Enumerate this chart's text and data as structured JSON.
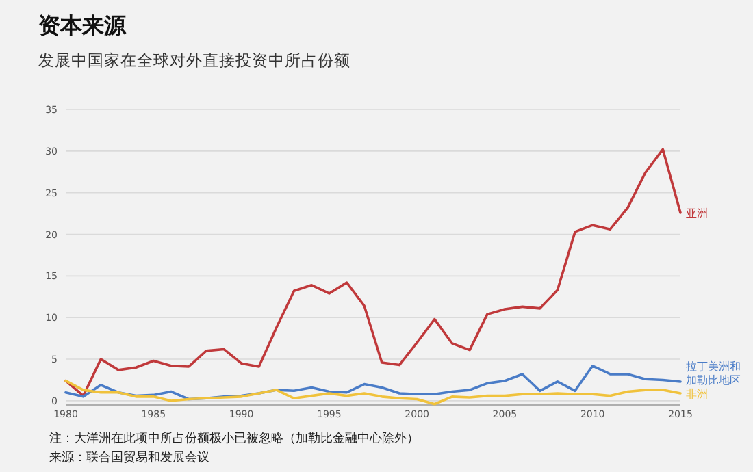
{
  "chart_data": {
    "type": "line",
    "title": "资本来源",
    "subtitle": "发展中国家在全球对外直接投资中所占份额",
    "annotations": [
      "注：大洋洲在此项中所占份额极小已被忽略（加勒比金融中心除外）",
      "来源：联合国贸易和发展会议"
    ],
    "x": [
      1980,
      1981,
      1982,
      1983,
      1984,
      1985,
      1986,
      1987,
      1988,
      1989,
      1990,
      1991,
      1992,
      1993,
      1994,
      1995,
      1996,
      1997,
      1998,
      1999,
      2000,
      2001,
      2002,
      2003,
      2004,
      2005,
      2006,
      2007,
      2008,
      2009,
      2010,
      2011,
      2012,
      2013,
      2014,
      2015
    ],
    "series": [
      {
        "name": "亚洲",
        "color": "#c0393b",
        "values": [
          2.4,
          0.6,
          5.0,
          3.7,
          4.0,
          4.8,
          4.2,
          4.1,
          6.0,
          6.2,
          4.5,
          4.1,
          8.8,
          13.2,
          13.9,
          12.9,
          14.2,
          11.4,
          4.6,
          4.3,
          7.0,
          9.8,
          6.9,
          6.1,
          10.4,
          11.0,
          11.3,
          11.1,
          13.3,
          20.3,
          21.1,
          20.6,
          23.2,
          27.4,
          30.2,
          22.6
        ]
      },
      {
        "name": "拉丁美洲和加勒比地区",
        "color": "#4a7cc7",
        "values": [
          1.0,
          0.5,
          1.9,
          1.0,
          0.6,
          0.7,
          1.1,
          0.2,
          0.3,
          0.5,
          0.6,
          0.9,
          1.3,
          1.2,
          1.6,
          1.1,
          1.0,
          2.0,
          1.6,
          0.9,
          0.8,
          0.8,
          1.1,
          1.3,
          2.1,
          2.4,
          3.2,
          1.2,
          2.3,
          1.2,
          4.2,
          3.2,
          3.2,
          2.6,
          2.5,
          2.3
        ]
      },
      {
        "name": "非洲",
        "color": "#f0c23c",
        "values": [
          2.4,
          1.3,
          1.0,
          1.0,
          0.5,
          0.5,
          0.0,
          0.2,
          0.3,
          0.4,
          0.5,
          0.9,
          1.3,
          0.3,
          0.6,
          0.9,
          0.6,
          0.9,
          0.5,
          0.3,
          0.2,
          -0.4,
          0.5,
          0.4,
          0.6,
          0.6,
          0.8,
          0.8,
          0.9,
          0.8,
          0.8,
          0.6,
          1.1,
          1.3,
          1.3,
          0.9
        ]
      }
    ],
    "xlim": [
      1980,
      2015
    ],
    "ylim": [
      -0.5,
      35
    ],
    "xticks": [
      1980,
      1985,
      1990,
      1995,
      2000,
      2005,
      2010,
      2015
    ],
    "yticks": [
      0,
      5,
      10,
      15,
      20,
      25,
      30,
      35
    ],
    "grid": "y"
  }
}
